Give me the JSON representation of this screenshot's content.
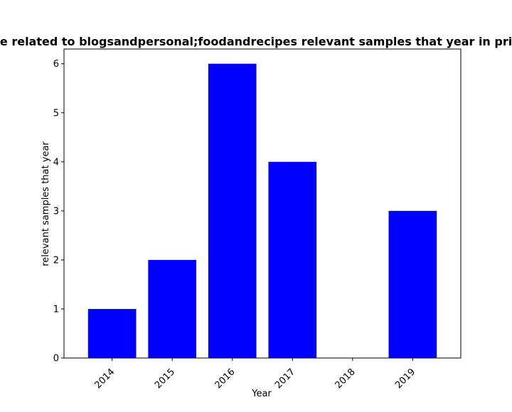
{
  "chart_data": {
    "type": "bar",
    "title": "Number of websites that are related to blogsandpersonal;foodandrecipes relevant samples that year in privacy policies in our dataset",
    "xlabel": "Year",
    "ylabel": "relevant samples that year",
    "categories": [
      "2014",
      "2015",
      "2016",
      "2017",
      "2018",
      "2019"
    ],
    "values": [
      1,
      2,
      6,
      4,
      0,
      3
    ],
    "ylim": [
      0,
      6.3
    ],
    "yticks": [
      "0",
      "1",
      "2",
      "3",
      "4",
      "5",
      "6"
    ],
    "bar_color": "#0000ff",
    "grid": false,
    "legend": "none"
  }
}
